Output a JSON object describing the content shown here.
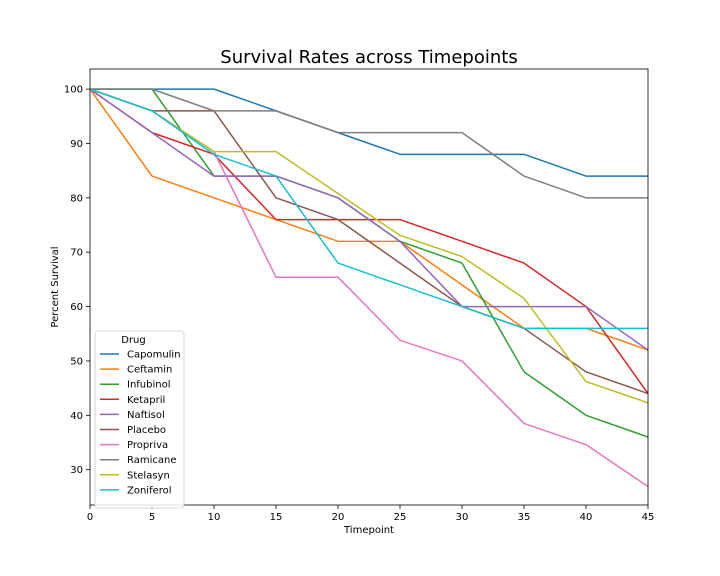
{
  "chart_data": {
    "type": "line",
    "title": "Survival Rates across Timepoints",
    "xlabel": "Timepoint",
    "ylabel": "Percent Survival",
    "xlim": [
      0,
      45
    ],
    "ylim": [
      23.5,
      103.7
    ],
    "xticks": [
      0,
      5,
      10,
      15,
      20,
      25,
      30,
      35,
      40,
      45
    ],
    "yticks": [
      30,
      40,
      50,
      60,
      70,
      80,
      90,
      100
    ],
    "grid": false,
    "legend": {
      "title": "Drug",
      "placement": "lower-left"
    },
    "x": [
      0,
      5,
      10,
      15,
      20,
      25,
      30,
      35,
      40,
      45
    ],
    "series": [
      {
        "name": "Capomulin",
        "color": "#1f77b4",
        "values": [
          100,
          100,
          100,
          96,
          92,
          88,
          88,
          88,
          84,
          84
        ]
      },
      {
        "name": "Ceftamin",
        "color": "#ff7f0e",
        "values": [
          100,
          84,
          80,
          76,
          72,
          72,
          64,
          56,
          56,
          52
        ]
      },
      {
        "name": "Infubinol",
        "color": "#2ca02c",
        "values": [
          100,
          100,
          84,
          84,
          80,
          72,
          68,
          48,
          40,
          36
        ]
      },
      {
        "name": "Ketapril",
        "color": "#d62728",
        "values": [
          100,
          92,
          88,
          76,
          76,
          76,
          72,
          68,
          60,
          44
        ]
      },
      {
        "name": "Naftisol",
        "color": "#9467bd",
        "values": [
          100,
          92,
          84,
          84,
          80,
          72,
          60,
          60,
          60,
          52
        ]
      },
      {
        "name": "Placebo",
        "color": "#8c564b",
        "values": [
          100,
          96,
          96,
          80,
          76,
          68,
          60,
          56,
          48,
          44
        ]
      },
      {
        "name": "Propriva",
        "color": "#e377c2",
        "values": [
          100,
          96,
          88.5,
          65.4,
          65.4,
          53.8,
          50,
          38.5,
          34.6,
          26.9
        ]
      },
      {
        "name": "Ramicane",
        "color": "#7f7f7f",
        "values": [
          100,
          100,
          96,
          96,
          92,
          92,
          92,
          84,
          80,
          80
        ]
      },
      {
        "name": "Stelasyn",
        "color": "#bcbd22",
        "values": [
          100,
          96,
          88.5,
          88.5,
          80.8,
          73.1,
          69.2,
          61.5,
          46.2,
          42.3
        ]
      },
      {
        "name": "Zoniferol",
        "color": "#17becf",
        "values": [
          100,
          96,
          88,
          84,
          68,
          64,
          60,
          56,
          56,
          56
        ]
      }
    ]
  }
}
